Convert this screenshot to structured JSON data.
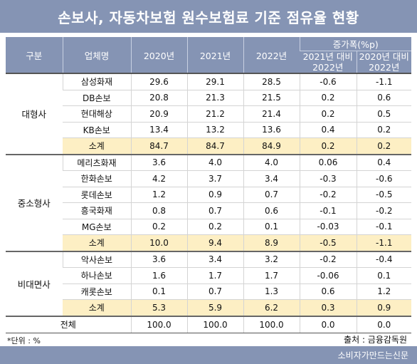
{
  "title": "손보사, 자동차보험 원수보험료 기준 점유율 현황",
  "headers": {
    "category": "구분",
    "company": "업체명",
    "y2020": "2020년",
    "y2021": "2021년",
    "y2022": "2022년",
    "change": "증가폭(%p)",
    "change_a_l1": "2021년 대비",
    "change_a_l2": "2022년",
    "change_b_l1": "2020년 대비",
    "change_b_l2": "2022년"
  },
  "groups": [
    {
      "name": "대형사",
      "rows": [
        {
          "company": "삼성화재",
          "y2020": "29.6",
          "y2021": "29.1",
          "y2022": "28.5",
          "chg21": "-0.6",
          "chg20": "-1.1"
        },
        {
          "company": "DB손보",
          "y2020": "20.8",
          "y2021": "21.3",
          "y2022": "21.5",
          "chg21": "0.2",
          "chg20": "0.6"
        },
        {
          "company": "현대해상",
          "y2020": "20.9",
          "y2021": "21.2",
          "y2022": "21.4",
          "chg21": "0.2",
          "chg20": "0.5"
        },
        {
          "company": "KB손보",
          "y2020": "13.4",
          "y2021": "13.2",
          "y2022": "13.6",
          "chg21": "0.4",
          "chg20": "0.2"
        }
      ],
      "subtotal": {
        "company": "소계",
        "y2020": "84.7",
        "y2021": "84.7",
        "y2022": "84.9",
        "chg21": "0.2",
        "chg20": "0.2"
      }
    },
    {
      "name": "중소형사",
      "rows": [
        {
          "company": "메리츠화재",
          "y2020": "3.6",
          "y2021": "4.0",
          "y2022": "4.0",
          "chg21": "0.06",
          "chg20": "0.4"
        },
        {
          "company": "한화손보",
          "y2020": "4.2",
          "y2021": "3.7",
          "y2022": "3.4",
          "chg21": "-0.3",
          "chg20": "-0.6"
        },
        {
          "company": "롯데손보",
          "y2020": "1.2",
          "y2021": "0.9",
          "y2022": "0.7",
          "chg21": "-0.2",
          "chg20": "-0.5"
        },
        {
          "company": "흥국화재",
          "y2020": "0.8",
          "y2021": "0.7",
          "y2022": "0.6",
          "chg21": "-0.1",
          "chg20": "-0.2"
        },
        {
          "company": "MG손보",
          "y2020": "0.2",
          "y2021": "0.2",
          "y2022": "0.1",
          "chg21": "-0.03",
          "chg20": "-0.1"
        }
      ],
      "subtotal": {
        "company": "소계",
        "y2020": "10.0",
        "y2021": "9.4",
        "y2022": "8.9",
        "chg21": "-0.5",
        "chg20": "-1.1"
      }
    },
    {
      "name": "비대면사",
      "rows": [
        {
          "company": "악사손보",
          "y2020": "3.6",
          "y2021": "3.4",
          "y2022": "3.2",
          "chg21": "-0.2",
          "chg20": "-0.4"
        },
        {
          "company": "하나손보",
          "y2020": "1.6",
          "y2021": "1.7",
          "y2022": "1.7",
          "chg21": "-0.06",
          "chg20": "0.1"
        },
        {
          "company": "캐롯손보",
          "y2020": "0.1",
          "y2021": "0.7",
          "y2022": "1.3",
          "chg21": "0.6",
          "chg20": "1.2"
        }
      ],
      "subtotal": {
        "company": "소계",
        "y2020": "5.3",
        "y2021": "5.9",
        "y2022": "6.2",
        "chg21": "0.3",
        "chg20": "0.9"
      }
    }
  ],
  "total": {
    "label": "전체",
    "y2020": "100.0",
    "y2021": "100.0",
    "y2022": "100.0",
    "chg21": "0.0",
    "chg20": "0.0"
  },
  "footer": {
    "unit": "*단위 : %",
    "source": "출처 : 금융감독원",
    "brand": "소비자가만드는신문"
  },
  "colors": {
    "header_bg": "#8594b4",
    "subtotal_bg": "#fdefc4"
  }
}
